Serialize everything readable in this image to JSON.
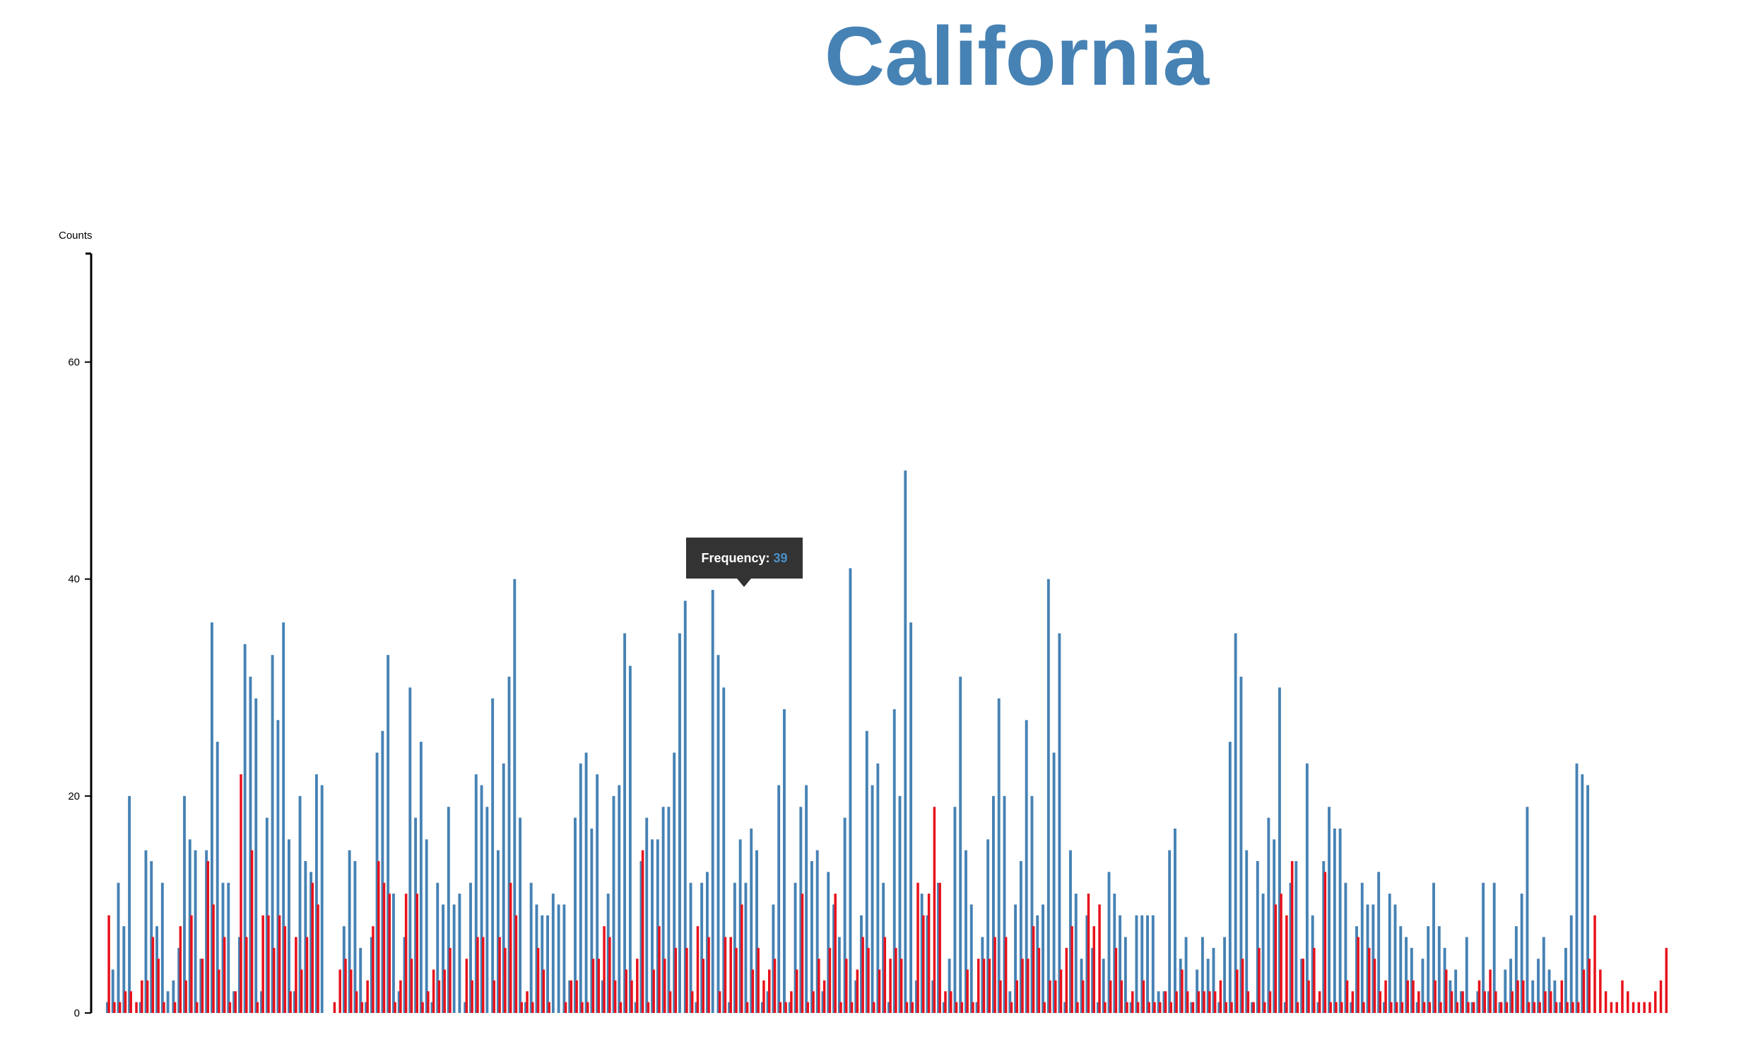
{
  "title": "California",
  "tooltip": {
    "label": "Frequency:",
    "value": "39"
  },
  "colors": {
    "title": "#4682b4",
    "series_a": "#4682b4",
    "series_b": "#e8111b",
    "tooltip_bg": "#333333"
  },
  "chart_data": {
    "type": "bar",
    "ylabel": "Counts",
    "ylim": [
      0,
      70
    ],
    "yticks": [
      0,
      20,
      40,
      60
    ],
    "series": [
      {
        "values": [
          1,
          4,
          12,
          8,
          20,
          0,
          1,
          15,
          14,
          8,
          12,
          2,
          3,
          6,
          20,
          16,
          15,
          5,
          15,
          36,
          25,
          12,
          12,
          2,
          7,
          34,
          31,
          29,
          2,
          18,
          33,
          27,
          36,
          16,
          2,
          20,
          14,
          13,
          22,
          21,
          0,
          0,
          0,
          8,
          15,
          14,
          6,
          1,
          7,
          24,
          26,
          33,
          11,
          2,
          7,
          30,
          18,
          25,
          16,
          1,
          12,
          10,
          19,
          10,
          11,
          1,
          12,
          22,
          21,
          19,
          29,
          15,
          23,
          31,
          40,
          18,
          1,
          12,
          10,
          9,
          9,
          11,
          10,
          10,
          3,
          18,
          23,
          24,
          17,
          22,
          3,
          11,
          20,
          21,
          35,
          32,
          1,
          14,
          18,
          16,
          16,
          19,
          19,
          24,
          35,
          38,
          12,
          1,
          12,
          13,
          39,
          33,
          30,
          1,
          12,
          16,
          12,
          17,
          15,
          1,
          2,
          10,
          21,
          28,
          1,
          12,
          19,
          21,
          14,
          15,
          2,
          13,
          10,
          7,
          18,
          41,
          3,
          9,
          26,
          21,
          23,
          12,
          1,
          28,
          20,
          50,
          36,
          3,
          11,
          9,
          3,
          12,
          1,
          5,
          19,
          31,
          15,
          10,
          1,
          7,
          16,
          20,
          29,
          20,
          2,
          10,
          14,
          27,
          20,
          9,
          10,
          40,
          24,
          35,
          1,
          15,
          11,
          5,
          9,
          6,
          1,
          5,
          13,
          11,
          9,
          7,
          1,
          9,
          9,
          9,
          9,
          2,
          2,
          15,
          17,
          5,
          7,
          1,
          4,
          7,
          5,
          6,
          1,
          7,
          25,
          35,
          31,
          15,
          1,
          14,
          11,
          18,
          16,
          30,
          1,
          12,
          14,
          5,
          23,
          9,
          1,
          14,
          19,
          17,
          17,
          12,
          1,
          8,
          12,
          10,
          10,
          13,
          1,
          11,
          10,
          8,
          7,
          6,
          1,
          5,
          8,
          12,
          8,
          6,
          3,
          4,
          2,
          7,
          1,
          2,
          12,
          2,
          12,
          1,
          4,
          5,
          8,
          11,
          19,
          3,
          5,
          7,
          4,
          3,
          1,
          6,
          9,
          23,
          22,
          21
        ],
        "color": "#4682b4"
      },
      {
        "values": [
          9,
          1,
          1,
          2,
          2,
          1,
          3,
          3,
          7,
          5,
          1,
          0,
          1,
          8,
          3,
          9,
          1,
          5,
          14,
          10,
          4,
          7,
          1,
          2,
          22,
          7,
          15,
          1,
          9,
          9,
          6,
          9,
          8,
          2,
          7,
          4,
          7,
          12,
          10,
          0,
          0,
          1,
          4,
          5,
          4,
          2,
          1,
          3,
          8,
          14,
          12,
          11,
          1,
          3,
          11,
          5,
          11,
          1,
          2,
          4,
          3,
          4,
          6,
          0,
          0,
          5,
          3,
          7,
          7,
          0,
          3,
          7,
          6,
          12,
          9,
          1,
          2,
          1,
          6,
          4,
          1,
          0,
          0,
          1,
          3,
          3,
          1,
          1,
          5,
          5,
          8,
          7,
          3,
          1,
          4,
          3,
          5,
          15,
          1,
          4,
          8,
          5,
          2,
          6,
          0,
          6,
          2,
          8,
          5,
          7,
          0,
          2,
          7,
          7,
          6,
          10,
          1,
          4,
          6,
          3,
          4,
          5,
          1,
          1,
          2,
          4,
          11,
          1,
          2,
          5,
          3,
          6,
          11,
          1,
          5,
          1,
          4,
          7,
          6,
          1,
          4,
          7,
          5,
          6,
          5,
          1,
          1,
          12,
          9,
          11,
          19,
          12,
          2,
          2,
          1,
          1,
          4,
          1,
          5,
          5,
          5,
          7,
          3,
          7,
          1,
          3,
          5,
          5,
          8,
          6,
          1,
          3,
          3,
          4,
          6,
          8,
          1,
          3,
          11,
          8,
          10,
          1,
          3,
          6,
          3,
          1,
          2,
          1,
          3,
          1,
          1,
          1,
          2,
          1,
          2,
          4,
          2,
          1,
          2,
          2,
          2,
          2,
          3,
          1,
          1,
          4,
          5,
          2,
          1,
          6,
          1,
          2,
          10,
          11,
          9,
          14,
          1,
          5,
          3,
          6,
          2,
          13,
          1,
          1,
          1,
          3,
          2,
          7,
          1,
          6,
          5,
          2,
          3,
          1,
          1,
          1,
          3,
          3,
          2,
          1,
          1,
          3,
          1,
          4,
          2,
          1,
          2,
          1,
          1,
          3,
          2,
          4,
          2,
          1,
          1,
          2,
          3,
          3,
          1,
          1,
          1,
          2,
          2,
          1,
          3,
          1,
          1,
          1,
          4,
          5,
          9,
          4,
          2,
          1,
          1,
          3,
          2,
          1,
          1,
          1,
          1,
          2,
          3,
          6
        ],
        "color": "#e8111b"
      }
    ]
  }
}
